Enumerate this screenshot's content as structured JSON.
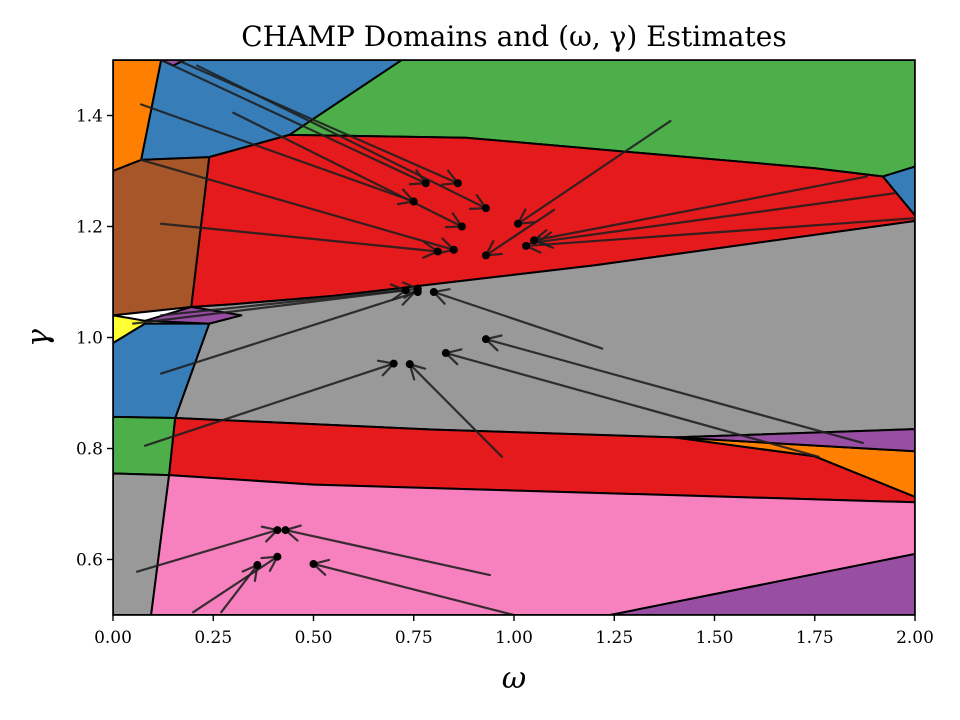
{
  "chart_data": {
    "type": "scatter",
    "title": "CHAMP Domains and (ω, γ) Estimates",
    "xlabel": "ω",
    "ylabel": "γ",
    "xlim": [
      0.0,
      2.0
    ],
    "ylim": [
      0.5,
      1.5
    ],
    "xticks": [
      0.0,
      0.25,
      0.5,
      0.75,
      1.0,
      1.25,
      1.5,
      1.75,
      2.0
    ],
    "xtick_labels": [
      "0.00",
      "0.25",
      "0.50",
      "0.75",
      "1.00",
      "1.25",
      "1.50",
      "1.75",
      "2.00"
    ],
    "yticks": [
      0.6,
      0.8,
      1.0,
      1.2,
      1.4
    ],
    "ytick_labels": [
      "0.6",
      "0.8",
      "1.0",
      "1.2",
      "1.4"
    ],
    "grid": false,
    "colors": {
      "green": "#4daf4a",
      "blue": "#377eb8",
      "orange": "#ff7f00",
      "purple": "#984ea3",
      "red": "#e41a1c",
      "brown": "#a65628",
      "yellow": "#ffff33",
      "gray": "#999999",
      "pink": "#f781bf"
    },
    "domains": [
      {
        "color": "green",
        "polygon": [
          [
            0.18,
            1.5
          ],
          [
            2.0,
            1.5
          ],
          [
            2.0,
            1.308
          ],
          [
            1.92,
            1.29
          ],
          [
            1.75,
            1.305
          ],
          [
            0.88,
            1.36
          ],
          [
            0.44,
            1.365
          ]
        ]
      },
      {
        "color": "blue",
        "polygon": [
          [
            0.12,
            1.5
          ],
          [
            0.72,
            1.5
          ],
          [
            0.44,
            1.365
          ],
          [
            0.24,
            1.325
          ],
          [
            0.07,
            1.32
          ]
        ]
      },
      {
        "color": "orange",
        "polygon": [
          [
            0.0,
            1.5
          ],
          [
            0.12,
            1.5
          ],
          [
            0.07,
            1.32
          ],
          [
            0.0,
            1.3
          ]
        ]
      },
      {
        "color": "purple",
        "polygon": [
          [
            0.12,
            1.5
          ],
          [
            0.18,
            1.5
          ],
          [
            0.15,
            1.49
          ]
        ]
      },
      {
        "color": "red",
        "polygon": [
          [
            0.24,
            1.325
          ],
          [
            0.44,
            1.365
          ],
          [
            0.88,
            1.36
          ],
          [
            1.75,
            1.305
          ],
          [
            1.92,
            1.29
          ],
          [
            2.0,
            1.22
          ],
          [
            2.0,
            1.21
          ],
          [
            1.2,
            1.13
          ],
          [
            0.55,
            1.075
          ],
          [
            0.3,
            1.06
          ],
          [
            0.195,
            1.055
          ]
        ]
      },
      {
        "color": "brown",
        "polygon": [
          [
            0.0,
            1.3
          ],
          [
            0.07,
            1.32
          ],
          [
            0.24,
            1.325
          ],
          [
            0.195,
            1.055
          ],
          [
            0.0,
            1.04
          ]
        ]
      },
      {
        "color": "blue",
        "polygon": [
          [
            1.92,
            1.29
          ],
          [
            2.0,
            1.308
          ],
          [
            2.0,
            1.22
          ]
        ]
      },
      {
        "color": "gray",
        "polygon": [
          [
            0.195,
            1.055
          ],
          [
            0.3,
            1.06
          ],
          [
            0.55,
            1.075
          ],
          [
            1.2,
            1.13
          ],
          [
            2.0,
            1.21
          ],
          [
            2.0,
            0.835
          ],
          [
            1.4,
            0.82
          ],
          [
            0.8,
            0.834
          ],
          [
            0.155,
            0.855
          ],
          [
            0.24,
            1.025
          ],
          [
            0.32,
            1.04
          ]
        ]
      },
      {
        "color": "purple",
        "polygon": [
          [
            0.08,
            1.03
          ],
          [
            0.195,
            1.055
          ],
          [
            0.32,
            1.04
          ],
          [
            0.24,
            1.025
          ]
        ]
      },
      {
        "color": "yellow",
        "polygon": [
          [
            0.0,
            1.04
          ],
          [
            0.08,
            1.03
          ],
          [
            0.08,
            1.025
          ],
          [
            0.0,
            0.99
          ]
        ]
      },
      {
        "color": "blue",
        "polygon": [
          [
            0.0,
            0.99
          ],
          [
            0.08,
            1.025
          ],
          [
            0.24,
            1.025
          ],
          [
            0.155,
            0.855
          ],
          [
            0.0,
            0.857
          ]
        ]
      },
      {
        "color": "green",
        "polygon": [
          [
            0.0,
            0.857
          ],
          [
            0.155,
            0.855
          ],
          [
            0.14,
            0.752
          ],
          [
            0.0,
            0.755
          ]
        ]
      },
      {
        "color": "red",
        "polygon": [
          [
            0.155,
            0.855
          ],
          [
            0.8,
            0.834
          ],
          [
            1.4,
            0.82
          ],
          [
            1.75,
            0.786
          ],
          [
            2.0,
            0.713
          ],
          [
            2.0,
            0.703
          ],
          [
            0.5,
            0.735
          ],
          [
            0.14,
            0.752
          ]
        ]
      },
      {
        "color": "orange",
        "polygon": [
          [
            1.4,
            0.82
          ],
          [
            2.0,
            0.795
          ],
          [
            2.0,
            0.713
          ],
          [
            1.75,
            0.786
          ]
        ]
      },
      {
        "color": "purple",
        "polygon": [
          [
            1.4,
            0.82
          ],
          [
            2.0,
            0.835
          ],
          [
            2.0,
            0.795
          ]
        ]
      },
      {
        "color": "gray",
        "polygon": [
          [
            0.0,
            0.755
          ],
          [
            0.14,
            0.752
          ],
          [
            0.095,
            0.5
          ],
          [
            0.0,
            0.5
          ]
        ]
      },
      {
        "color": "pink",
        "polygon": [
          [
            0.14,
            0.752
          ],
          [
            0.5,
            0.735
          ],
          [
            2.0,
            0.703
          ],
          [
            2.0,
            0.61
          ],
          [
            1.24,
            0.5
          ],
          [
            0.095,
            0.5
          ]
        ]
      },
      {
        "color": "purple",
        "polygon": [
          [
            1.24,
            0.5
          ],
          [
            2.0,
            0.61
          ],
          [
            2.0,
            0.5
          ]
        ]
      }
    ],
    "arrows": [
      {
        "from": [
          0.07,
          1.42
        ],
        "to": [
          0.75,
          1.245
        ]
      },
      {
        "from": [
          0.3,
          1.405
        ],
        "to": [
          0.87,
          1.2
        ]
      },
      {
        "from": [
          0.12,
          1.5
        ],
        "to": [
          0.78,
          1.278
        ]
      },
      {
        "from": [
          0.16,
          1.5
        ],
        "to": [
          0.86,
          1.278
        ]
      },
      {
        "from": [
          0.21,
          1.49
        ],
        "to": [
          0.93,
          1.233
        ]
      },
      {
        "from": [
          0.12,
          1.205
        ],
        "to": [
          0.81,
          1.155
        ]
      },
      {
        "from": [
          0.07,
          1.32
        ],
        "to": [
          0.85,
          1.158
        ]
      },
      {
        "from": [
          1.39,
          1.39
        ],
        "to": [
          1.01,
          1.205
        ]
      },
      {
        "from": [
          1.88,
          1.29
        ],
        "to": [
          1.05,
          1.175
        ]
      },
      {
        "from": [
          1.95,
          1.26
        ],
        "to": [
          1.06,
          1.172
        ]
      },
      {
        "from": [
          2.0,
          1.215
        ],
        "to": [
          1.03,
          1.165
        ]
      },
      {
        "from": [
          1.1,
          1.23
        ],
        "to": [
          0.93,
          1.148
        ]
      },
      {
        "from": [
          0.05,
          1.025
        ],
        "to": [
          0.73,
          1.085
        ]
      },
      {
        "from": [
          0.12,
          1.04
        ],
        "to": [
          0.76,
          1.088
        ]
      },
      {
        "from": [
          0.12,
          0.935
        ],
        "to": [
          0.75,
          1.08
        ]
      },
      {
        "from": [
          1.22,
          0.98
        ],
        "to": [
          0.8,
          1.082
        ]
      },
      {
        "from": [
          0.08,
          0.805
        ],
        "to": [
          0.7,
          0.953
        ]
      },
      {
        "from": [
          0.97,
          0.785
        ],
        "to": [
          0.74,
          0.952
        ]
      },
      {
        "from": [
          1.87,
          0.81
        ],
        "to": [
          0.93,
          0.997
        ]
      },
      {
        "from": [
          1.76,
          0.785
        ],
        "to": [
          0.83,
          0.972
        ]
      },
      {
        "from": [
          0.06,
          0.578
        ],
        "to": [
          0.41,
          0.653
        ]
      },
      {
        "from": [
          0.94,
          0.572
        ],
        "to": [
          0.43,
          0.653
        ]
      },
      {
        "from": [
          0.2,
          0.505
        ],
        "to": [
          0.41,
          0.605
        ]
      },
      {
        "from": [
          0.27,
          0.505
        ],
        "to": [
          0.36,
          0.59
        ]
      },
      {
        "from": [
          1.0,
          0.5
        ],
        "to": [
          0.5,
          0.592
        ]
      }
    ],
    "estimates": [
      [
        0.78,
        1.278
      ],
      [
        0.86,
        1.278
      ],
      [
        0.75,
        1.245
      ],
      [
        0.93,
        1.233
      ],
      [
        0.87,
        1.2
      ],
      [
        1.01,
        1.205
      ],
      [
        1.05,
        1.175
      ],
      [
        1.03,
        1.165
      ],
      [
        0.81,
        1.155
      ],
      [
        0.85,
        1.158
      ],
      [
        0.93,
        1.148
      ],
      [
        0.73,
        1.085
      ],
      [
        0.76,
        1.088
      ],
      [
        0.76,
        1.082
      ],
      [
        0.8,
        1.082
      ],
      [
        0.7,
        0.953
      ],
      [
        0.74,
        0.952
      ],
      [
        0.83,
        0.972
      ],
      [
        0.93,
        0.997
      ],
      [
        0.41,
        0.653
      ],
      [
        0.43,
        0.653
      ],
      [
        0.41,
        0.605
      ],
      [
        0.36,
        0.59
      ],
      [
        0.5,
        0.592
      ]
    ]
  }
}
